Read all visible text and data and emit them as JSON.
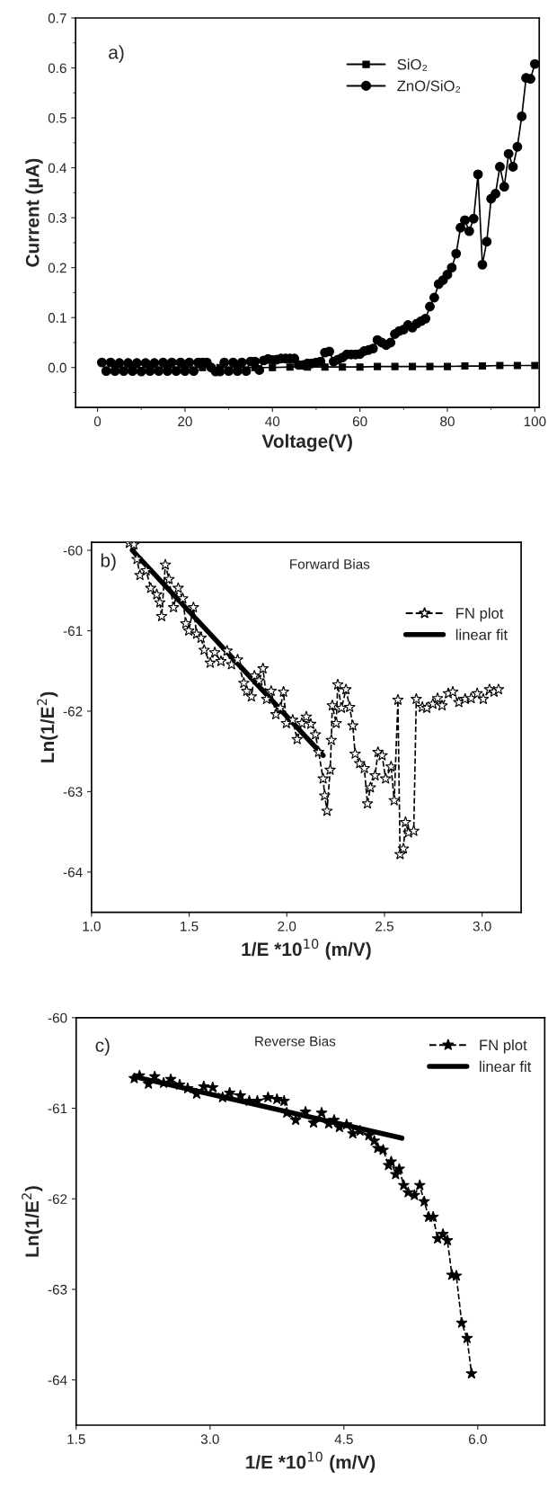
{
  "chart_data": [
    {
      "type": "line",
      "xlabel": "Voltage(V)",
      "ylabel": "Current (µA)",
      "annotations": [
        "a)"
      ],
      "xlim": [
        -5,
        101
      ],
      "xticks": [
        0,
        20,
        40,
        60,
        80,
        100
      ],
      "ylim": [
        -0.08,
        0.7
      ],
      "yticks": [
        {
          "value": 0,
          "label": "0.0"
        },
        0.1,
        0.2,
        0.3,
        0.4,
        0.5,
        0.6,
        0.7
      ],
      "grid": false,
      "legend": "top right",
      "series": [
        {
          "name": "SiO₂",
          "color": "#000000",
          "marker": "square",
          "line_style": "solid",
          "x": [
            4,
            8,
            12,
            16,
            20,
            24,
            28,
            32,
            36,
            40,
            44,
            48,
            52,
            56,
            60,
            64,
            68,
            72,
            76,
            80,
            84,
            88,
            92,
            96,
            100
          ],
          "values": [
            0,
            0,
            0,
            0,
            0,
            0,
            0,
            0,
            0,
            0,
            0.001,
            0.001,
            0.001,
            0.001,
            0.001,
            0.002,
            0.002,
            0.002,
            0.002,
            0.002,
            0.003,
            0.003,
            0.004,
            0.004,
            0.004
          ]
        },
        {
          "name": "ZnO/SiO₂",
          "color": "#000000",
          "marker": "circle",
          "line_style": "solid",
          "x": [
            1,
            2,
            3,
            4,
            5,
            6,
            7,
            8,
            9,
            10,
            11,
            12,
            13,
            14,
            15,
            16,
            17,
            18,
            19,
            20,
            21,
            22,
            23,
            24,
            25,
            26,
            27,
            28,
            29,
            30,
            31,
            32,
            33,
            34,
            35,
            36,
            37,
            38,
            39,
            40,
            41,
            42,
            43,
            44,
            45,
            46,
            47,
            48,
            49,
            50,
            51,
            52,
            53,
            54,
            55,
            56,
            57,
            58,
            59,
            60,
            61,
            62,
            63,
            64,
            65,
            66,
            67,
            68,
            69,
            70,
            71,
            72,
            73,
            74,
            75,
            76,
            77,
            78,
            79,
            80,
            81,
            82,
            83,
            84,
            85,
            86,
            87,
            88,
            89,
            90,
            91,
            92,
            93,
            94,
            95,
            96,
            97,
            98,
            99,
            100
          ],
          "values": [
            0.01,
            -0.007,
            0.01,
            -0.007,
            0.009,
            -0.007,
            0.009,
            -0.007,
            0.009,
            -0.008,
            0.009,
            -0.007,
            0.009,
            -0.007,
            0.01,
            -0.007,
            0.01,
            -0.007,
            0.01,
            -0.007,
            0.01,
            -0.007,
            0.01,
            0.01,
            0.01,
            0.0,
            -0.008,
            -0.008,
            0.01,
            -0.007,
            0.01,
            -0.007,
            0.01,
            -0.007,
            0.012,
            0.012,
            -0.005,
            0.014,
            0.017,
            0.015,
            0.016,
            0.018,
            0.018,
            0.018,
            0.018,
            0.005,
            0.005,
            0.008,
            0.008,
            0.01,
            0.012,
            0.03,
            0.032,
            0.012,
            0.016,
            0.02,
            0.026,
            0.026,
            0.026,
            0.027,
            0.033,
            0.035,
            0.038,
            0.055,
            0.05,
            0.045,
            0.05,
            0.067,
            0.073,
            0.076,
            0.085,
            0.08,
            0.088,
            0.093,
            0.098,
            0.122,
            0.14,
            0.167,
            0.175,
            0.186,
            0.2,
            0.228,
            0.28,
            0.295,
            0.273,
            0.298,
            0.387,
            0.206,
            0.252,
            0.338,
            0.348,
            0.402,
            0.362,
            0.428,
            0.402,
            0.442,
            0.503,
            0.58,
            0.578,
            0.608
          ]
        }
      ]
    },
    {
      "type": "line",
      "xlabel": "1/E *10$^{10}$ (m/V)",
      "ylabel": "Ln(1/E$^{2}$)",
      "annotations": [
        "b)",
        "Forward Bias"
      ],
      "xlim": [
        1.0,
        3.2
      ],
      "xticks": [
        {
          "value": 1,
          "label": "1.0"
        },
        1.5,
        {
          "value": 2,
          "label": "2.0"
        },
        2.5,
        {
          "value": 3,
          "label": "3.0"
        }
      ],
      "ylim": [
        -64.5,
        -59.9
      ],
      "yticks": [
        -60,
        -61,
        -62,
        -63,
        -64
      ],
      "grid": false,
      "legend": "top right",
      "series": [
        {
          "name": "FN plot",
          "color": "#000000",
          "marker": "star",
          "line_style": "dashed",
          "x": [
            1.194,
            1.217,
            1.233,
            1.248,
            1.28,
            1.303,
            1.334,
            1.35,
            1.359,
            1.378,
            1.397,
            1.42,
            1.444,
            1.467,
            1.483,
            1.498,
            1.522,
            1.538,
            1.561,
            1.577,
            1.608,
            1.631,
            1.663,
            1.694,
            1.717,
            1.748,
            1.78,
            1.795,
            1.819,
            1.834,
            1.858,
            1.878,
            1.897,
            1.92,
            1.944,
            1.967,
            1.983,
            1.998,
            2.03,
            2.053,
            2.077,
            2.1,
            2.123,
            2.147,
            2.163,
            2.186,
            2.194,
            2.206,
            2.222,
            2.228,
            2.233,
            2.253,
            2.261,
            2.28,
            2.303,
            2.322,
            2.338,
            2.35,
            2.373,
            2.397,
            2.413,
            2.428,
            2.452,
            2.467,
            2.488,
            2.506,
            2.534,
            2.55,
            2.569,
            2.58,
            2.597,
            2.608,
            2.623,
            2.65,
            2.663,
            2.694,
            2.717,
            2.748,
            2.772,
            2.795,
            2.827,
            2.85,
            2.881,
            2.913,
            2.944,
            2.975,
            3.006,
            3.038,
            3.061,
            3.084
          ],
          "values": [
            -59.91,
            -59.93,
            -60.11,
            -60.31,
            -60.25,
            -60.47,
            -60.55,
            -60.65,
            -60.82,
            -60.18,
            -60.36,
            -60.71,
            -60.47,
            -60.6,
            -60.91,
            -61.0,
            -60.71,
            -61.04,
            -61.09,
            -61.24,
            -61.4,
            -61.27,
            -61.38,
            -61.25,
            -61.42,
            -61.36,
            -61.65,
            -61.75,
            -61.82,
            -61.56,
            -61.62,
            -61.47,
            -61.85,
            -61.75,
            -62.04,
            -61.96,
            -61.76,
            -62.15,
            -62.11,
            -62.35,
            -62.15,
            -62.07,
            -62.16,
            -62.29,
            -62.51,
            -62.84,
            -63.05,
            -63.24,
            -62.73,
            -62.36,
            -61.93,
            -62.15,
            -61.67,
            -61.96,
            -61.73,
            -61.95,
            -62.18,
            -62.53,
            -62.65,
            -62.71,
            -63.15,
            -62.95,
            -62.8,
            -62.51,
            -62.55,
            -62.84,
            -62.69,
            -63.11,
            -61.86,
            -63.78,
            -63.71,
            -63.38,
            -63.51,
            -63.49,
            -61.85,
            -61.95,
            -61.96,
            -61.91,
            -61.84,
            -61.93,
            -61.78,
            -61.76,
            -61.89,
            -61.85,
            -61.84,
            -61.78,
            -61.85,
            -61.73,
            -61.76,
            -61.73
          ]
        },
        {
          "name": "linear fit",
          "color": "#000000",
          "marker": "none",
          "line_style": "solid",
          "x": [
            1.209,
            2.186
          ],
          "values": [
            -60.0,
            -62.55
          ]
        }
      ]
    },
    {
      "type": "line",
      "xlabel": "1/E *10$^{10}$ (m/V)",
      "ylabel": "Ln(1/E$^{2}$)",
      "annotations": [
        "c)",
        "Reverse Bias"
      ],
      "xlim": [
        1.5,
        6.75
      ],
      "xticks": [
        1.5,
        {
          "value": 3,
          "label": "3.0"
        },
        4.5,
        {
          "value": 6,
          "label": "6.0"
        }
      ],
      "ylim": [
        -64.5,
        -60
      ],
      "yticks": [
        -60,
        -61,
        -62,
        -63,
        -64
      ],
      "grid": false,
      "legend": "top right",
      "series": [
        {
          "name": "FN plot",
          "color": "#000000",
          "marker": "star",
          "line_style": "dashed",
          "x": [
            2.15,
            2.21,
            2.31,
            2.38,
            2.48,
            2.56,
            2.66,
            2.75,
            2.85,
            2.93,
            3.03,
            3.14,
            3.22,
            3.34,
            3.44,
            3.53,
            3.65,
            3.75,
            3.83,
            3.86,
            3.96,
            4.07,
            4.16,
            4.25,
            4.33,
            4.39,
            4.45,
            4.53,
            4.6,
            4.68,
            4.78,
            4.84,
            4.88,
            4.94,
            5.0,
            5.03,
            5.08,
            5.12,
            5.17,
            5.22,
            5.29,
            5.35,
            5.4,
            5.45,
            5.5,
            5.55,
            5.61,
            5.66,
            5.71,
            5.76,
            5.82,
            5.88,
            5.93
          ],
          "values": [
            -60.67,
            -60.64,
            -60.73,
            -60.65,
            -60.72,
            -60.68,
            -60.74,
            -60.78,
            -60.84,
            -60.76,
            -60.77,
            -60.88,
            -60.83,
            -60.86,
            -60.92,
            -60.92,
            -60.88,
            -60.9,
            -60.92,
            -61.05,
            -61.13,
            -61.04,
            -61.16,
            -61.05,
            -61.17,
            -61.13,
            -61.21,
            -61.18,
            -61.28,
            -61.25,
            -61.3,
            -61.36,
            -61.44,
            -61.46,
            -61.63,
            -61.59,
            -61.73,
            -61.67,
            -61.85,
            -61.93,
            -61.96,
            -61.85,
            -62.03,
            -62.2,
            -62.2,
            -62.44,
            -62.39,
            -62.46,
            -62.84,
            -62.85,
            -63.37,
            -63.54,
            -63.93
          ]
        },
        {
          "name": "linear fit",
          "color": "#000000",
          "marker": "none",
          "line_style": "solid",
          "x": [
            2.15,
            5.15
          ],
          "values": [
            -60.65,
            -61.33
          ]
        }
      ]
    }
  ]
}
